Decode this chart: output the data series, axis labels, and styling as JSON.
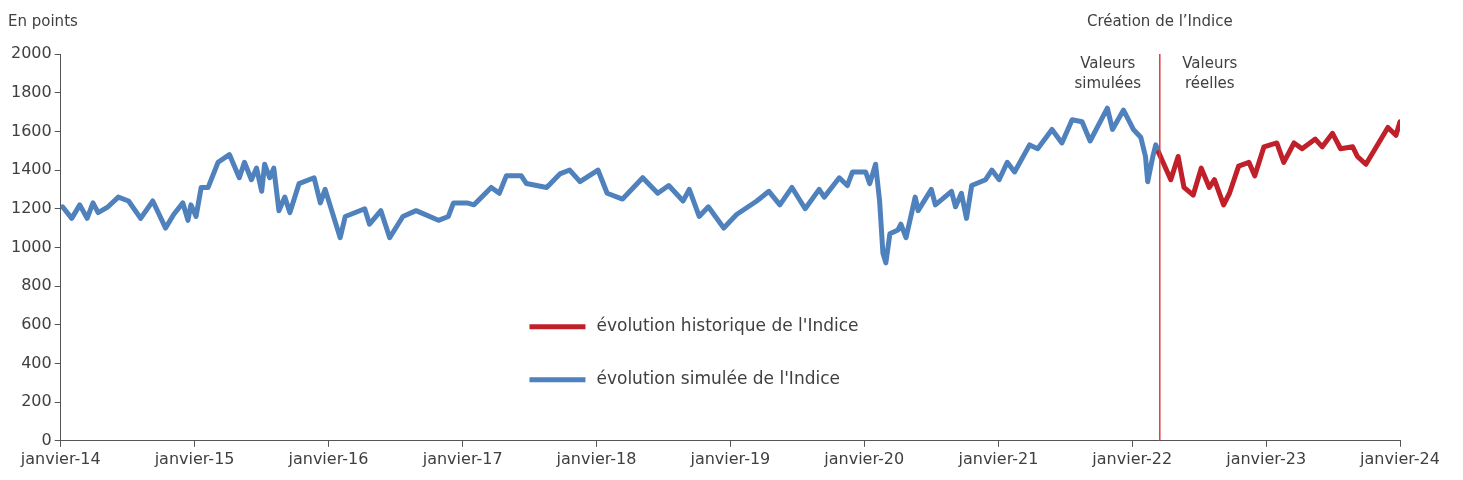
{
  "chart_data": {
    "type": "line",
    "ylabel": "En points",
    "legend": "bottom",
    "xlim": [
      "2014-01",
      "2024-01"
    ],
    "xticks": [
      {
        "value": "2014-01",
        "label": "janvier-14"
      },
      {
        "value": "2015-01",
        "label": "janvier-15"
      },
      {
        "value": "2016-01",
        "label": "janvier-16"
      },
      {
        "value": "2017-01",
        "label": "janvier-17"
      },
      {
        "value": "2018-01",
        "label": "janvier-18"
      },
      {
        "value": "2019-01",
        "label": "janvier-19"
      },
      {
        "value": "2020-01",
        "label": "janvier-20"
      },
      {
        "value": "2021-01",
        "label": "janvier-21"
      },
      {
        "value": "2022-01",
        "label": "janvier-22"
      },
      {
        "value": "2023-01",
        "label": "janvier-23"
      },
      {
        "value": "2024-01",
        "label": "janvier-24"
      }
    ],
    "ylim": [
      0,
      2000
    ],
    "yticks": [
      0,
      200,
      400,
      600,
      800,
      1000,
      1200,
      1400,
      1600,
      1800,
      2000
    ],
    "ref_lines": [
      {
        "axis": "x",
        "value": "2022-03-17",
        "label": "Création de l’Indice",
        "color": "#e03c3c"
      }
    ],
    "annotations": [
      "Valeurs simulées",
      "Valeurs réelles"
    ],
    "series": [
      {
        "name": "évolution historique de l'Indice",
        "color": "#c0202a",
        "x": [
          "2022-03-14",
          "2022-04-16",
          "2022-05-06",
          "2022-05-22",
          "2022-06-16",
          "2022-07-08",
          "2022-07-30",
          "2022-08-13",
          "2022-09-07",
          "2022-09-23",
          "2022-10-18",
          "2022-11-15",
          "2022-12-01",
          "2022-12-26",
          "2023-01-30",
          "2023-02-18",
          "2023-03-18",
          "2023-04-09",
          "2023-05-15",
          "2023-06-03",
          "2023-07-01",
          "2023-07-23",
          "2023-08-25",
          "2023-09-07",
          "2023-09-30",
          "2023-11-07",
          "2023-11-29",
          "2023-12-21",
          "2024-01-01"
        ],
        "values": [
          1490,
          1350,
          1470,
          1310,
          1270,
          1410,
          1310,
          1350,
          1220,
          1280,
          1420,
          1440,
          1370,
          1520,
          1540,
          1440,
          1540,
          1510,
          1560,
          1520,
          1590,
          1510,
          1520,
          1470,
          1430,
          1550,
          1620,
          1580,
          1650
        ]
      },
      {
        "name": "évolution simulée de l'Indice",
        "color": "#4f81bd",
        "x": [
          "2014-01-06",
          "2014-01-31",
          "2014-02-22",
          "2014-03-14",
          "2014-03-30",
          "2014-04-13",
          "2014-05-10",
          "2014-06-07",
          "2014-07-05",
          "2014-08-07",
          "2014-09-09",
          "2014-10-14",
          "2014-11-05",
          "2014-11-30",
          "2014-12-14",
          "2014-12-22",
          "2015-01-05",
          "2015-01-19",
          "2015-02-07",
          "2015-03-06",
          "2015-04-06",
          "2015-05-03",
          "2015-05-17",
          "2015-06-05",
          "2015-06-19",
          "2015-07-03",
          "2015-07-11",
          "2015-07-25",
          "2015-08-05",
          "2015-08-19",
          "2015-09-04",
          "2015-09-18",
          "2015-10-13",
          "2015-11-23",
          "2015-12-10",
          "2015-12-23",
          "2016-02-02",
          "2016-02-16",
          "2016-04-09",
          "2016-04-22",
          "2016-05-23",
          "2016-06-16",
          "2016-07-22",
          "2016-08-27",
          "2016-10-27",
          "2016-11-23",
          "2016-12-07",
          "2017-01-13",
          "2017-02-01",
          "2017-03-20",
          "2017-04-11",
          "2017-04-30",
          "2017-06-10",
          "2017-06-24",
          "2017-08-18",
          "2017-09-23",
          "2017-10-20",
          "2017-11-17",
          "2018-01-05",
          "2018-01-30",
          "2018-03-13",
          "2018-05-07",
          "2018-06-17",
          "2018-07-17",
          "2018-08-25",
          "2018-09-11",
          "2018-10-08",
          "2018-11-02",
          "2018-12-14",
          "2019-01-18",
          "2019-03-14",
          "2019-04-16",
          "2019-05-16",
          "2019-06-18",
          "2019-07-24",
          "2019-08-31",
          "2019-09-14",
          "2019-10-25",
          "2019-11-16",
          "2019-11-30",
          "2020-01-05",
          "2020-01-16",
          "2020-02-01",
          "2020-02-12",
          "2020-02-21",
          "2020-02-29",
          "2020-03-11",
          "2020-04-02",
          "2020-04-10",
          "2020-04-24",
          "2020-05-19",
          "2020-05-27",
          "2020-07-02",
          "2020-07-13",
          "2020-08-26",
          "2020-09-06",
          "2020-09-22",
          "2020-10-06",
          "2020-10-20",
          "2020-11-27",
          "2020-12-14",
          "2021-01-03",
          "2021-01-25",
          "2021-02-14",
          "2021-03-27",
          "2021-04-18",
          "2021-05-27",
          "2021-06-23",
          "2021-07-21",
          "2021-08-17",
          "2021-09-08",
          "2021-10-25",
          "2021-11-08",
          "2021-12-08",
          "2022-01-04",
          "2022-01-24",
          "2022-02-06",
          "2022-02-12",
          "2022-02-26",
          "2022-03-06",
          "2022-03-14"
        ],
        "values": [
          1210,
          1150,
          1220,
          1150,
          1230,
          1180,
          1210,
          1260,
          1240,
          1150,
          1240,
          1100,
          1170,
          1230,
          1140,
          1220,
          1160,
          1310,
          1310,
          1440,
          1480,
          1360,
          1440,
          1350,
          1410,
          1290,
          1430,
          1360,
          1410,
          1190,
          1260,
          1180,
          1330,
          1360,
          1230,
          1300,
          1050,
          1160,
          1200,
          1120,
          1190,
          1050,
          1160,
          1190,
          1140,
          1160,
          1230,
          1230,
          1220,
          1310,
          1280,
          1370,
          1370,
          1330,
          1310,
          1380,
          1400,
          1340,
          1400,
          1280,
          1250,
          1360,
          1280,
          1320,
          1240,
          1300,
          1160,
          1210,
          1100,
          1170,
          1240,
          1290,
          1220,
          1310,
          1200,
          1300,
          1260,
          1360,
          1320,
          1390,
          1390,
          1330,
          1430,
          1240,
          970,
          920,
          1070,
          1090,
          1120,
          1050,
          1260,
          1190,
          1300,
          1220,
          1290,
          1210,
          1280,
          1150,
          1320,
          1350,
          1400,
          1350,
          1440,
          1390,
          1530,
          1510,
          1610,
          1540,
          1660,
          1650,
          1550,
          1720,
          1610,
          1710,
          1610,
          1570,
          1470,
          1340,
          1470,
          1530,
          1490
        ]
      }
    ]
  }
}
